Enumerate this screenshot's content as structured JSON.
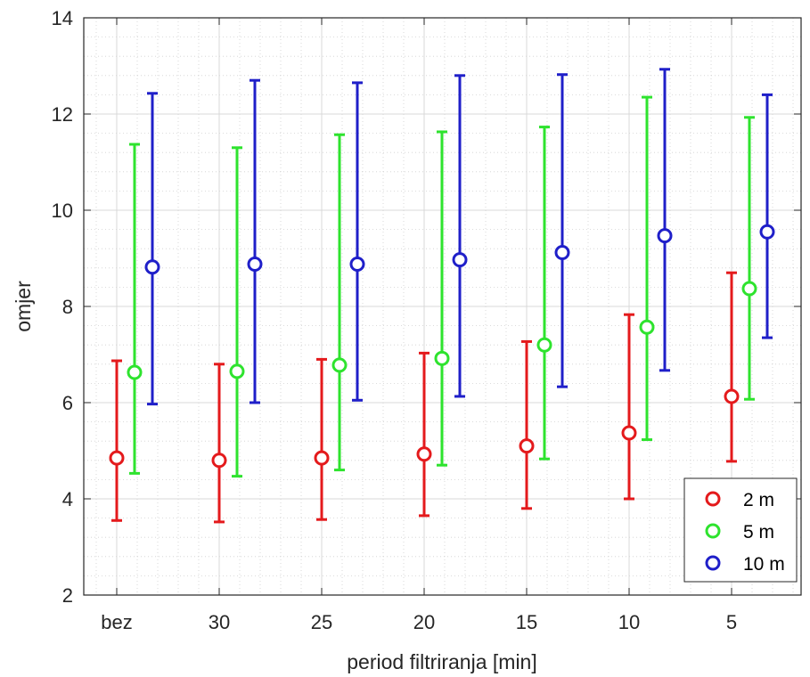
{
  "chart_data": {
    "type": "errorbar",
    "title": "",
    "xlabel": "period filtriranja [min]",
    "ylabel": "omjer",
    "categories": [
      "bez",
      "30",
      "25",
      "20",
      "15",
      "10",
      "5"
    ],
    "ylim": [
      2,
      14
    ],
    "yticks": [
      2,
      4,
      6,
      8,
      10,
      12,
      14
    ],
    "grid": true,
    "minor_grid": true,
    "legend_position": "bottom-right",
    "series": [
      {
        "name": "2 m",
        "color": "#e41a1c",
        "mean": [
          4.85,
          4.8,
          4.85,
          4.93,
          5.1,
          5.37,
          6.13
        ],
        "lower": [
          3.55,
          3.52,
          3.57,
          3.65,
          3.8,
          4.0,
          4.78
        ],
        "upper": [
          6.87,
          6.8,
          6.9,
          7.03,
          7.27,
          7.83,
          8.7
        ]
      },
      {
        "name": "5 m",
        "color": "#2ee32e",
        "mean": [
          6.63,
          6.65,
          6.78,
          6.92,
          7.2,
          7.57,
          8.37
        ],
        "lower": [
          4.53,
          4.47,
          4.6,
          4.7,
          4.83,
          5.23,
          6.07
        ],
        "upper": [
          11.37,
          11.3,
          11.57,
          11.63,
          11.73,
          12.35,
          11.93
        ]
      },
      {
        "name": "10 m",
        "color": "#1f1fc9",
        "mean": [
          8.82,
          8.88,
          8.88,
          8.97,
          9.12,
          9.47,
          9.55
        ],
        "lower": [
          5.97,
          6.0,
          6.05,
          6.13,
          6.33,
          6.67,
          7.35
        ],
        "upper": [
          12.43,
          12.7,
          12.65,
          12.8,
          12.82,
          12.93,
          12.4
        ]
      }
    ]
  }
}
